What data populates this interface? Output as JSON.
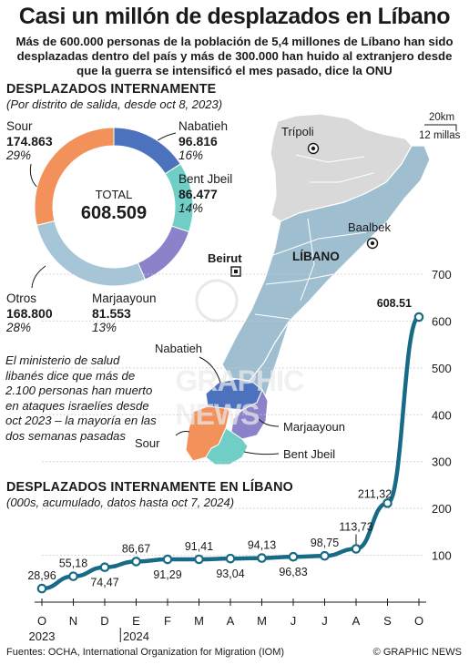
{
  "header": {
    "title": "Casi un millón de desplazados en Líbano",
    "subtitle": "Más de 600.000 personas de la población de 5,4 millones de Líbano han sido desplazadas dentro del país y más de 300.000 han huido al extranjero desde que la guerra se intensificó el mes pasado, dice la ONU"
  },
  "donut": {
    "title": "DESPLAZADOS INTERNAMENTE",
    "subtitle": "(Por distrito de salida, desde oct 8, 2023)",
    "total_label": "TOTAL",
    "total_value": "608.509",
    "colors": {
      "Sour": "#f3915a",
      "Nabatieh": "#4c72be",
      "Bent Jbeil": "#6fcfc6",
      "Marjaayoun": "#8b83c9",
      "Otros": "#a6c6d8"
    },
    "slices": [
      {
        "name": "Sour",
        "value": "174.863",
        "pct": "29%"
      },
      {
        "name": "Nabatieh",
        "value": "96.816",
        "pct": "16%"
      },
      {
        "name": "Bent Jbeil",
        "value": "86.477",
        "pct": "14%"
      },
      {
        "name": "Marjaayoun",
        "value": "81.553",
        "pct": "13%"
      },
      {
        "name": "Otros",
        "value": "168.800",
        "pct": "28%"
      }
    ]
  },
  "map": {
    "country": "LÍBANO",
    "cities": [
      "Trípoli",
      "Baalbek",
      "Beirut"
    ],
    "districts": [
      "Nabatieh",
      "Sour",
      "Marjaayoun",
      "Bent Jbeil"
    ],
    "scale_km": "20km",
    "scale_mi": "12 millas",
    "watermark": "GRAPHIC NEWS"
  },
  "note": "El ministerio de salud libanés dice que más de 2.100 personas han muerto en ataques israelíes desde oct 2023 – la mayoría en las dos semanas pasadas",
  "chart_data": {
    "type": "line",
    "title": "DESPLAZADOS INTERNAMENTE EN LÍBANO",
    "subtitle": "(000s, acumulado, datos hasta oct 7, 2024)",
    "color": "#176b86",
    "x": [
      "O",
      "N",
      "D",
      "E",
      "F",
      "M",
      "A",
      "M",
      "J",
      "J",
      "A",
      "S",
      "O"
    ],
    "year_labels": [
      "2023",
      "2024"
    ],
    "values": [
      28.96,
      55.18,
      74.47,
      86.67,
      91.29,
      91.41,
      93.04,
      94.13,
      96.83,
      98.75,
      113.73,
      211.32,
      608.51
    ],
    "value_labels": [
      "28,96",
      "55,18",
      "74,47",
      "86,67",
      "91,29",
      "91,41",
      "93,04",
      "94,13",
      "96,83",
      "98,75",
      "113,73",
      "211,32",
      "608.51"
    ],
    "ylim": [
      0,
      700
    ],
    "yticks": [
      100,
      200,
      300,
      400,
      500,
      600,
      700
    ]
  },
  "footer": {
    "sources": "Fuentes: OCHA, International Organization for Migration (IOM)",
    "credit": "© GRAPHIC NEWS"
  }
}
